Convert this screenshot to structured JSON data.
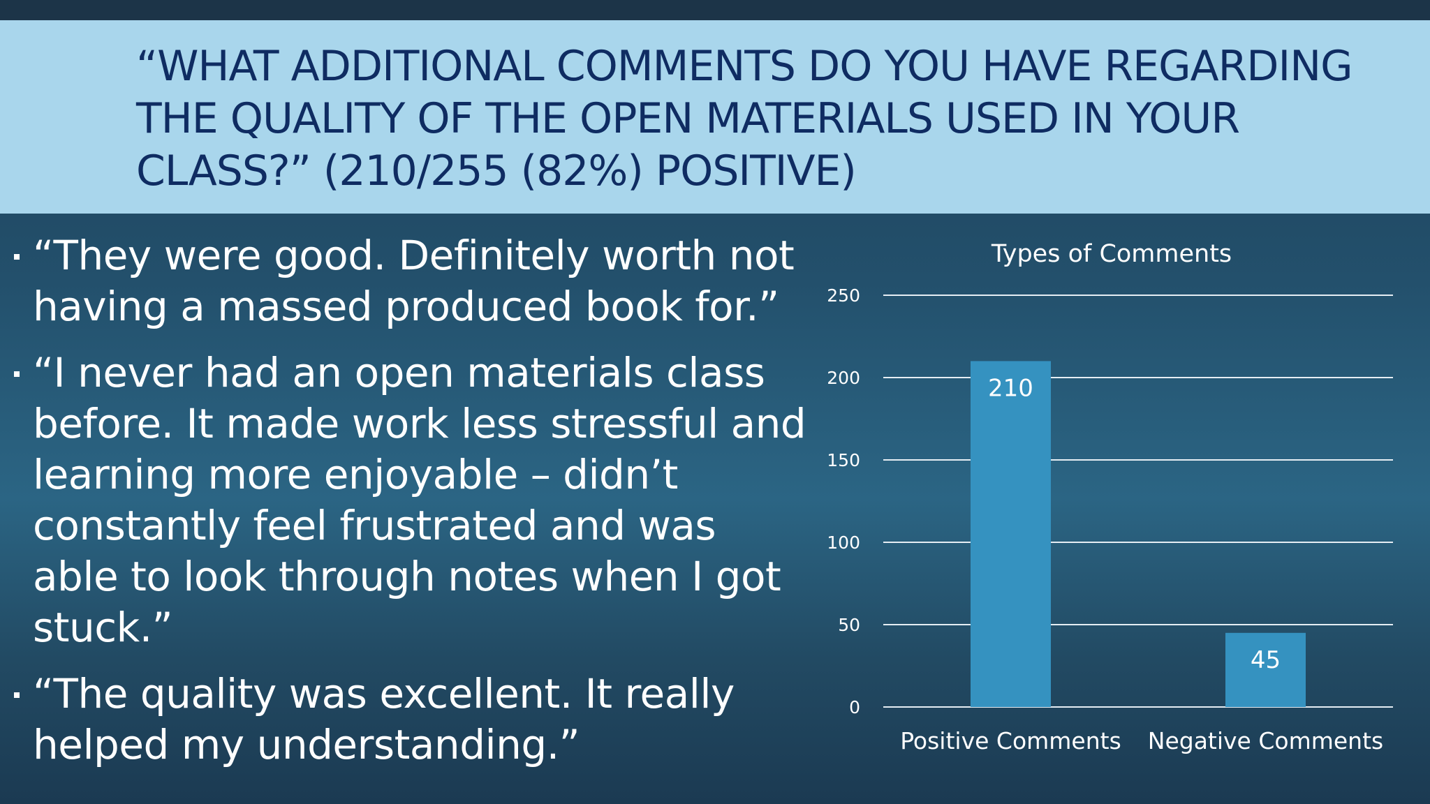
{
  "slide": {
    "title": "“WHAT ADDITIONAL COMMENTS DO YOU HAVE REGARDING THE QUALITY OF THE OPEN MATERIALS USED IN YOUR CLASS?” (210/255 (82%) POSITIVE)"
  },
  "quotes": [
    "“They were good.  Definitely worth not having a massed produced book for.”",
    "“I never had an open materials class before. It made work less stressful and learning more enjoyable – didn’t constantly feel frustrated and was able to look through notes when I got stuck.”",
    "“The quality was excellent.  It really helped my understanding.”"
  ],
  "colors": {
    "title_band": "#a9d6ec",
    "title_text": "#0f2c62",
    "bar": "#3592c0"
  },
  "chart_data": {
    "type": "bar",
    "title": "Types of Comments",
    "categories": [
      "Positive Comments",
      "Negative Comments"
    ],
    "values": [
      210,
      45
    ],
    "ylim": [
      0,
      250
    ],
    "yticks": [
      0,
      50,
      100,
      150,
      200,
      250
    ],
    "data_labels": true,
    "grid": true,
    "xlabel": "",
    "ylabel": ""
  }
}
